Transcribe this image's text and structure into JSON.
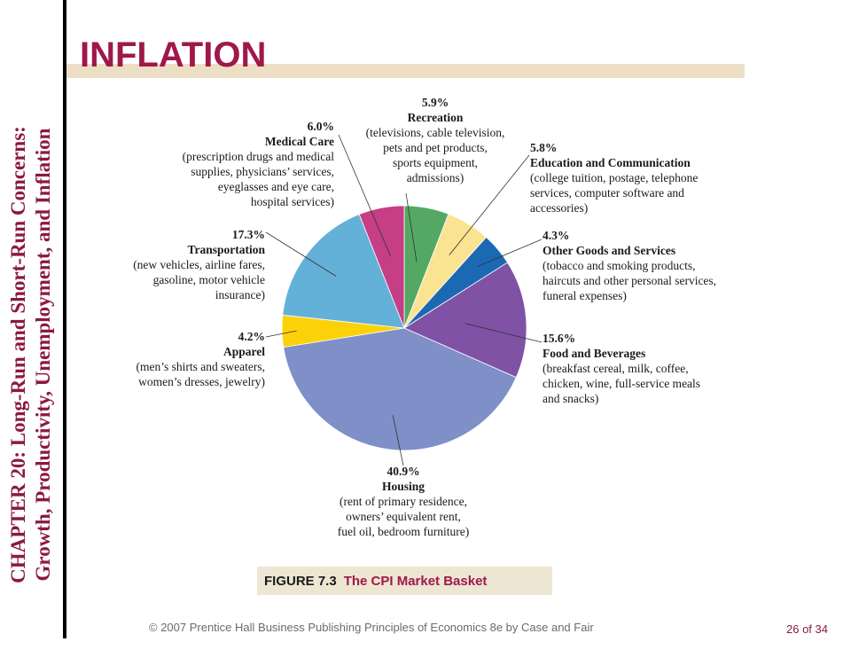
{
  "sidebar": {
    "line1": "CHAPTER 20:  Long-Run and Short-Run Concerns:",
    "line2": "Growth, Productivity, Unemployment, and Inflation"
  },
  "header": {
    "title": "INFLATION"
  },
  "figure": {
    "number": "FIGURE 7.3",
    "caption": "The CPI Market Basket"
  },
  "footer": {
    "copyright": "© 2007 Prentice Hall Business Publishing   Principles of Economics 8e by Case and Fair",
    "page": "26 of 34"
  },
  "colors": {
    "accent": "#a0184a",
    "recreation": "#54a863",
    "education": "#fbe491",
    "other": "#1b69b2",
    "food": "#7f52a5",
    "housing": "#7f8fc7",
    "apparel": "#fbd20a",
    "transportation": "#63b0d8",
    "medical": "#c63e85"
  },
  "chart_data": {
    "type": "pie",
    "title": "The CPI Market Basket",
    "slices": [
      {
        "name": "Recreation",
        "value": 5.9,
        "pct": "5.9%",
        "color": "#54a863",
        "desc": [
          "(televisions, cable television,",
          "pets and pet products,",
          "sports equipment,",
          "admissions)"
        ]
      },
      {
        "name": "Education and Communication",
        "value": 5.8,
        "pct": "5.8%",
        "color": "#fbe491",
        "desc": [
          "(college tuition, postage, telephone",
          "services, computer software and",
          "accessories)"
        ]
      },
      {
        "name": "Other Goods and Services",
        "value": 4.3,
        "pct": "4.3%",
        "color": "#1b69b2",
        "desc": [
          "(tobacco and smoking products,",
          "haircuts and other personal services,",
          "funeral expenses)"
        ]
      },
      {
        "name": "Food and Beverages",
        "value": 15.6,
        "pct": "15.6%",
        "color": "#7f52a5",
        "desc": [
          "(breakfast cereal, milk, coffee,",
          "chicken, wine, full-service meals",
          "and snacks)"
        ]
      },
      {
        "name": "Housing",
        "value": 40.9,
        "pct": "40.9%",
        "color": "#7f8fc7",
        "desc": [
          "(rent of primary residence,",
          "owners’ equivalent rent,",
          "fuel oil, bedroom furniture)"
        ]
      },
      {
        "name": "Apparel",
        "value": 4.2,
        "pct": "4.2%",
        "color": "#fbd20a",
        "desc": [
          "(men’s shirts and sweaters,",
          "women’s dresses, jewelry)"
        ]
      },
      {
        "name": "Transportation",
        "value": 17.3,
        "pct": "17.3%",
        "color": "#63b0d8",
        "desc": [
          "(new vehicles, airline fares,",
          "gasoline, motor vehicle",
          "insurance)"
        ]
      },
      {
        "name": "Medical Care",
        "value": 6.0,
        "pct": "6.0%",
        "color": "#c63e85",
        "desc": [
          "(prescription drugs and medical",
          "supplies, physicians’ services,",
          "eyeglasses and eye care,",
          "hospital services)"
        ]
      }
    ]
  }
}
